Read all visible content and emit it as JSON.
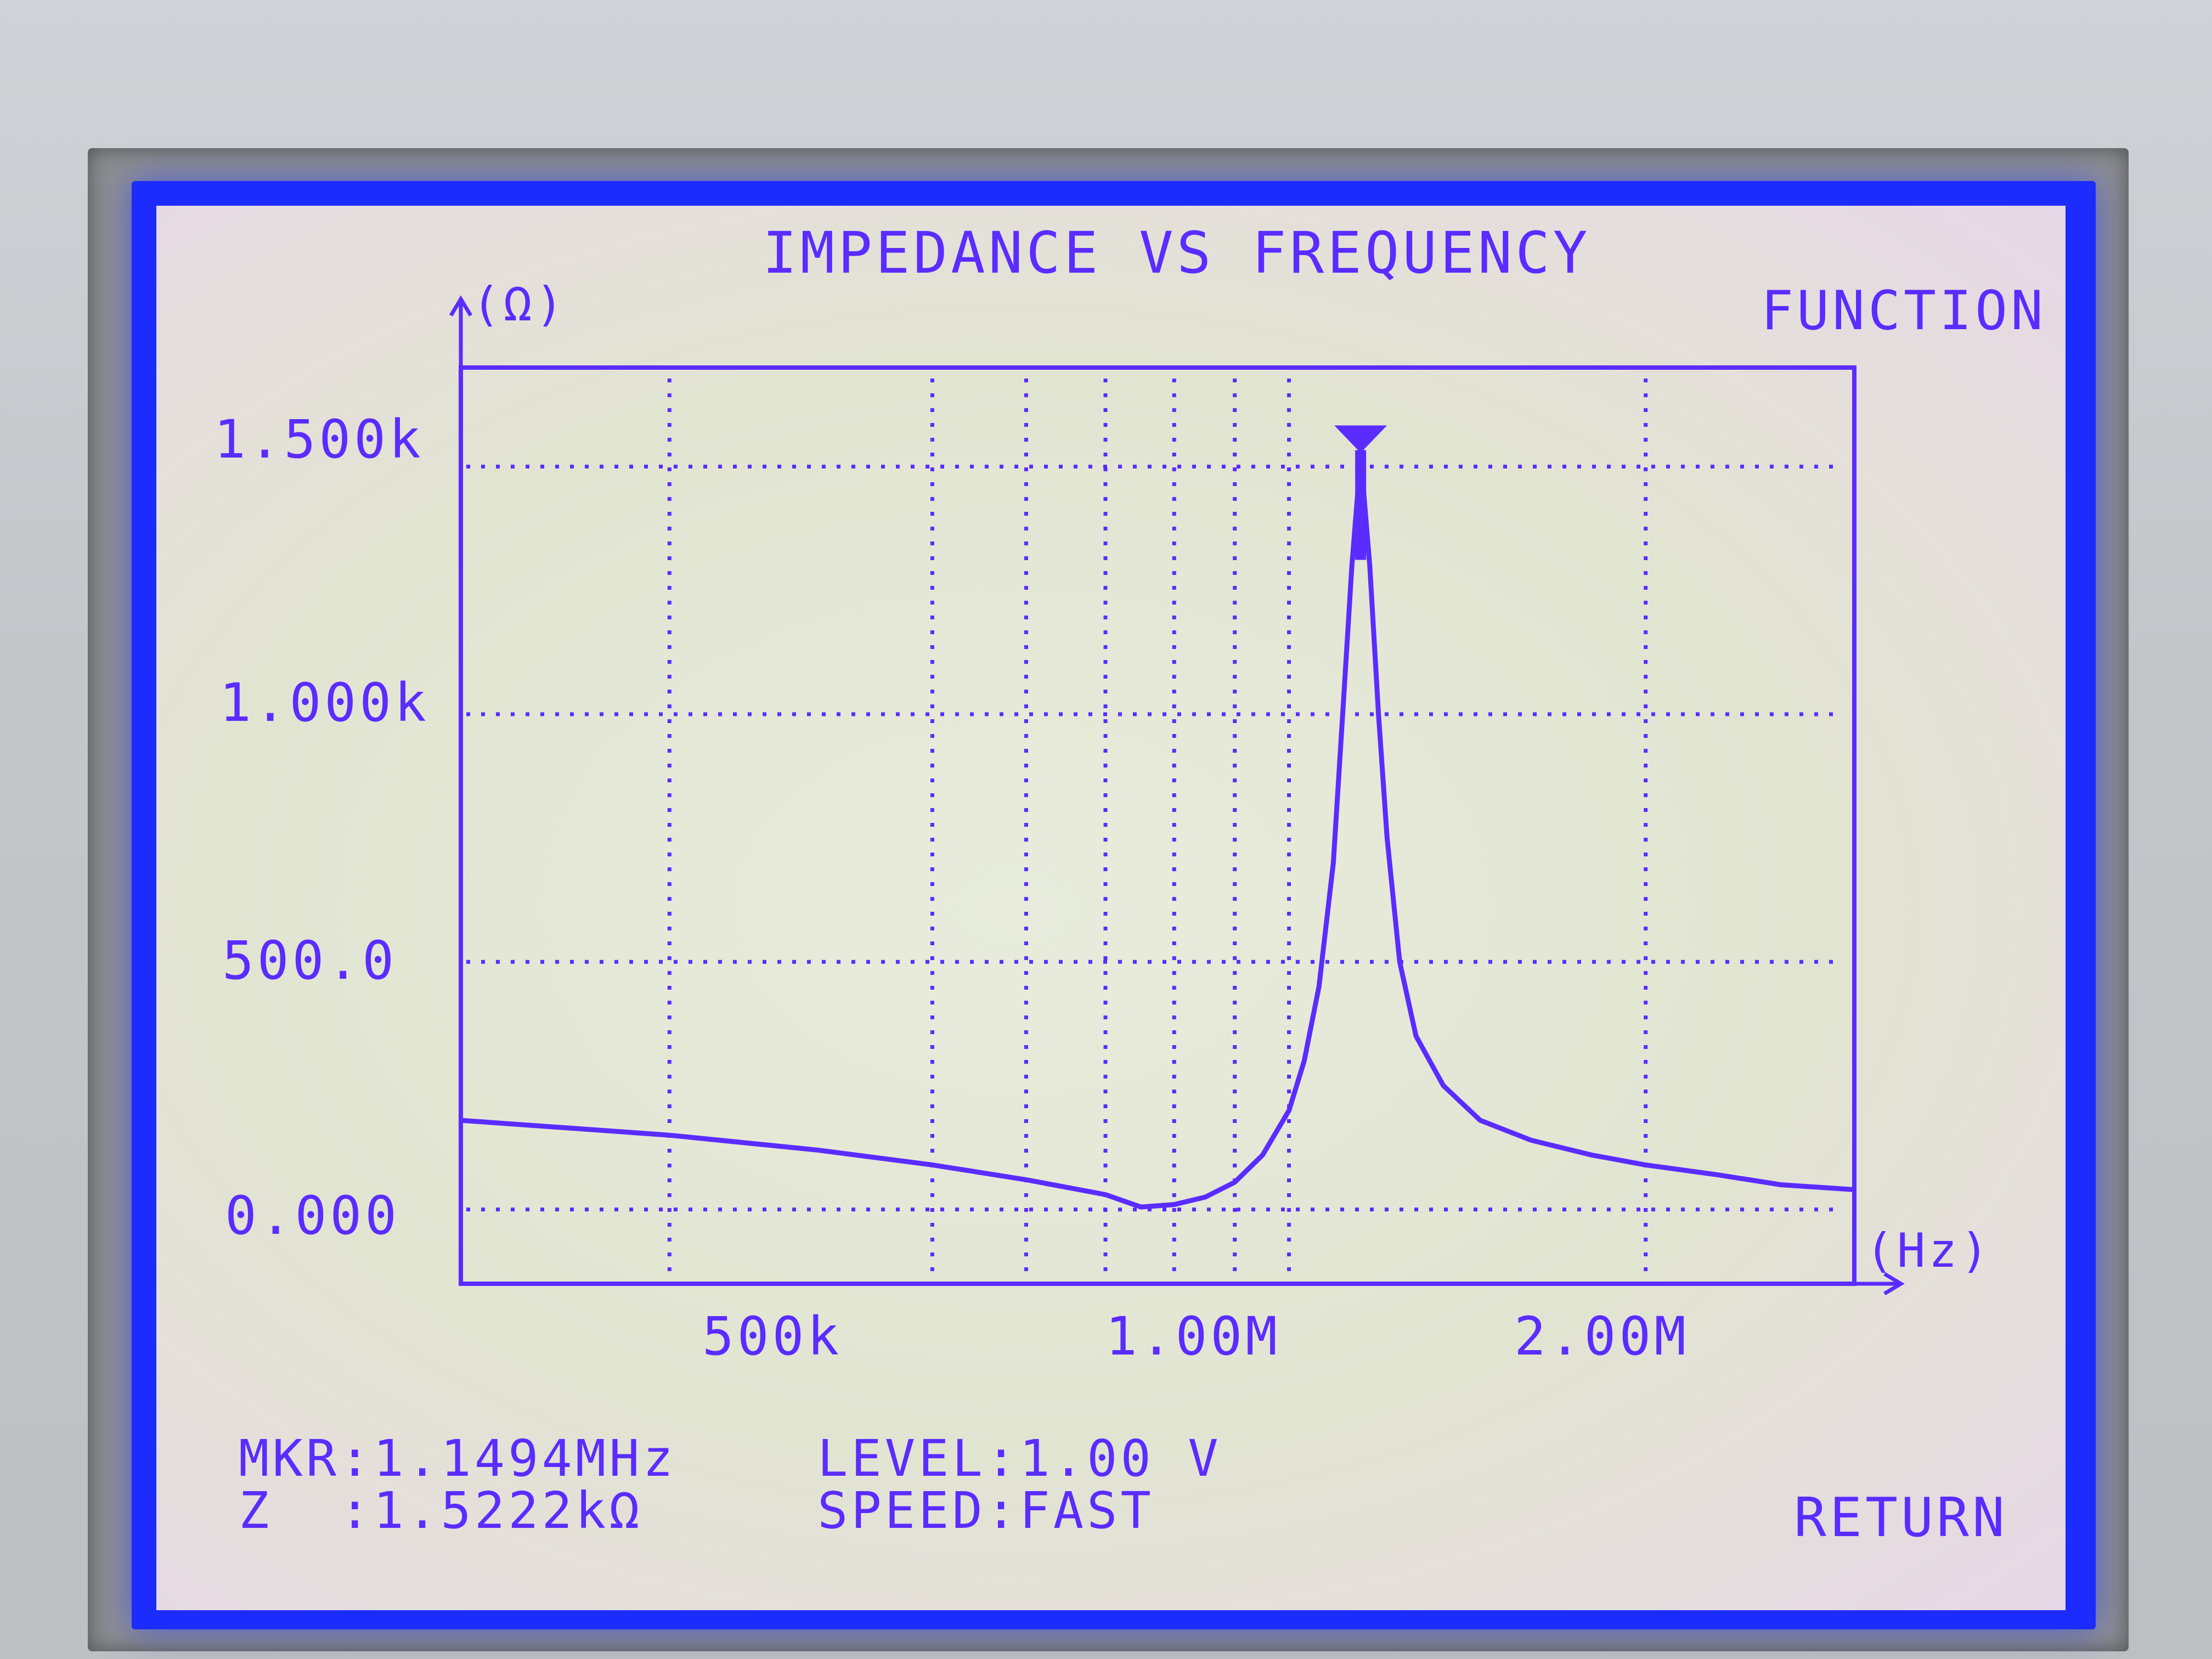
{
  "screen": {
    "title": "IMPEDANCE VS FREQUENCY",
    "softkeys": {
      "function_label": "FUNCTION",
      "return_label": "RETURN"
    },
    "status": {
      "marker_freq": "MKR:1.1494MHz",
      "impedance": "Z  :1.5222kΩ",
      "level": "LEVEL:1.00 V",
      "speed": "SPEED:FAST"
    },
    "colors": {
      "trace": "#5a2cff",
      "frame": "#1c2cff",
      "screen_bg": "#e6e8d6"
    }
  },
  "chart_data": {
    "type": "line",
    "title": "IMPEDANCE VS FREQUENCY",
    "xlabel": "(Hz)",
    "ylabel": "(Ω)",
    "x_scale": "log",
    "xlim": [
      200000,
      3000000
    ],
    "ylim": [
      -150,
      1700
    ],
    "x_tick_labels": [
      {
        "value": 500000,
        "label": "500k"
      },
      {
        "value": 1000000,
        "label": "1.00M"
      },
      {
        "value": 2000000,
        "label": "2.00M"
      }
    ],
    "x_gridlines": [
      300000,
      500000,
      600000,
      700000,
      800000,
      900000,
      1000000,
      2000000
    ],
    "y_tick_labels": [
      {
        "value": 1500,
        "label": "1.500k"
      },
      {
        "value": 1000,
        "label": "1.000k"
      },
      {
        "value": 500,
        "label": "500.0"
      },
      {
        "value": 0,
        "label": "0.000"
      }
    ],
    "grid": true,
    "series": [
      {
        "name": "|Z|",
        "x": [
          200000,
          300000,
          400000,
          500000,
          600000,
          700000,
          750000,
          800000,
          850000,
          900000,
          950000,
          1000000,
          1030000,
          1060000,
          1090000,
          1110000,
          1130000,
          1149400,
          1170000,
          1190000,
          1210000,
          1240000,
          1280000,
          1350000,
          1450000,
          1600000,
          1800000,
          2000000,
          2300000,
          2600000,
          3000000
        ],
        "values": [
          180,
          150,
          120,
          90,
          60,
          30,
          5,
          10,
          25,
          55,
          110,
          200,
          300,
          450,
          700,
          1000,
          1300,
          1522,
          1300,
          1000,
          750,
          500,
          350,
          250,
          180,
          140,
          110,
          90,
          70,
          50,
          40
        ]
      }
    ],
    "marker": {
      "x": 1149400,
      "value": 1522.2,
      "label": "MKR"
    }
  }
}
